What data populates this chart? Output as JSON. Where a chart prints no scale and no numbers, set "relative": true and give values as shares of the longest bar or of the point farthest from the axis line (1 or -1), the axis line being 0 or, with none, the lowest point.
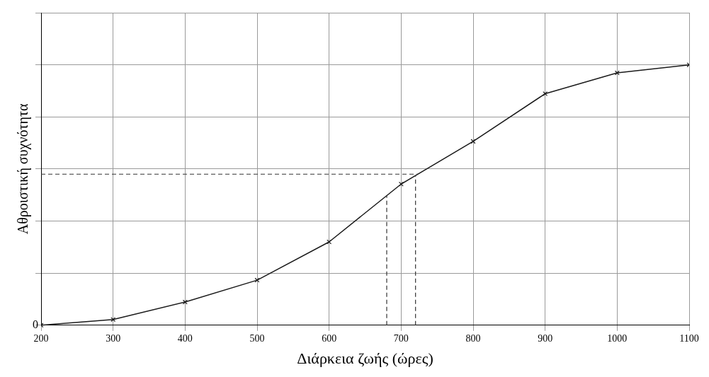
{
  "chart_data": {
    "type": "line",
    "xlabel": "Διάρκεια ζωής (ώρες)",
    "ylabel": "Αθροιστική συχνότητα",
    "relative": true,
    "x": [
      200,
      300,
      400,
      500,
      600,
      700,
      800,
      900,
      1000,
      1100
    ],
    "series": [
      {
        "color": "#1a1a1a",
        "values": [
          0,
          0.022,
          0.089,
          0.173,
          0.32,
          0.542,
          0.706,
          0.889,
          0.969,
          1
        ]
      }
    ],
    "xlim": [
      200,
      1100
    ],
    "xticks": [
      200,
      300,
      400,
      500,
      600,
      700,
      800,
      900,
      1000,
      1100
    ],
    "annotations": [
      "0"
    ],
    "ref_lines": [
      {
        "axis": "x",
        "value": 680,
        "line_style": "dashed",
        "color": "#333333"
      },
      {
        "axis": "x",
        "value": 720,
        "line_style": "dashed",
        "color": "#333333"
      },
      {
        "axis": "y",
        "value": 0.58,
        "line_style": "dashed",
        "color": "#333333"
      }
    ],
    "grid": true,
    "marker": "cross",
    "line_style": "solid",
    "legend": false
  }
}
